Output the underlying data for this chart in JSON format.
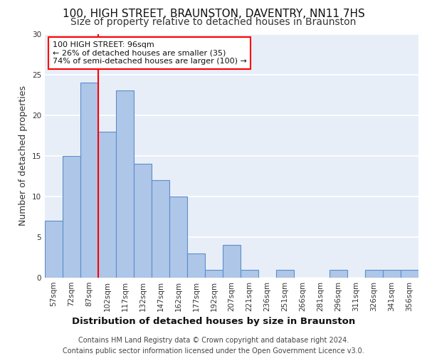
{
  "title": "100, HIGH STREET, BRAUNSTON, DAVENTRY, NN11 7HS",
  "subtitle": "Size of property relative to detached houses in Braunston",
  "xlabel": "Distribution of detached houses by size in Braunston",
  "ylabel": "Number of detached properties",
  "categories": [
    "57sqm",
    "72sqm",
    "87sqm",
    "102sqm",
    "117sqm",
    "132sqm",
    "147sqm",
    "162sqm",
    "177sqm",
    "192sqm",
    "207sqm",
    "221sqm",
    "236sqm",
    "251sqm",
    "266sqm",
    "281sqm",
    "296sqm",
    "311sqm",
    "326sqm",
    "341sqm",
    "356sqm"
  ],
  "values": [
    7,
    15,
    24,
    18,
    23,
    14,
    12,
    10,
    3,
    1,
    4,
    1,
    0,
    1,
    0,
    0,
    1,
    0,
    1,
    1,
    1
  ],
  "bar_color": "#aec6e8",
  "bar_edge_color": "#5b8fc9",
  "annotation_text": "100 HIGH STREET: 96sqm\n← 26% of detached houses are smaller (35)\n74% of semi-detached houses are larger (100) →",
  "annotation_box_color": "white",
  "annotation_box_edge_color": "red",
  "ref_line_color": "red",
  "ylim": [
    0,
    30
  ],
  "yticks": [
    0,
    5,
    10,
    15,
    20,
    25,
    30
  ],
  "footer_text": "Contains HM Land Registry data © Crown copyright and database right 2024.\nContains public sector information licensed under the Open Government Licence v3.0.",
  "bg_color": "#e8eef8",
  "grid_color": "white",
  "title_fontsize": 11,
  "subtitle_fontsize": 10,
  "axis_label_fontsize": 9,
  "tick_fontsize": 7.5,
  "annotation_fontsize": 8,
  "footer_fontsize": 7
}
